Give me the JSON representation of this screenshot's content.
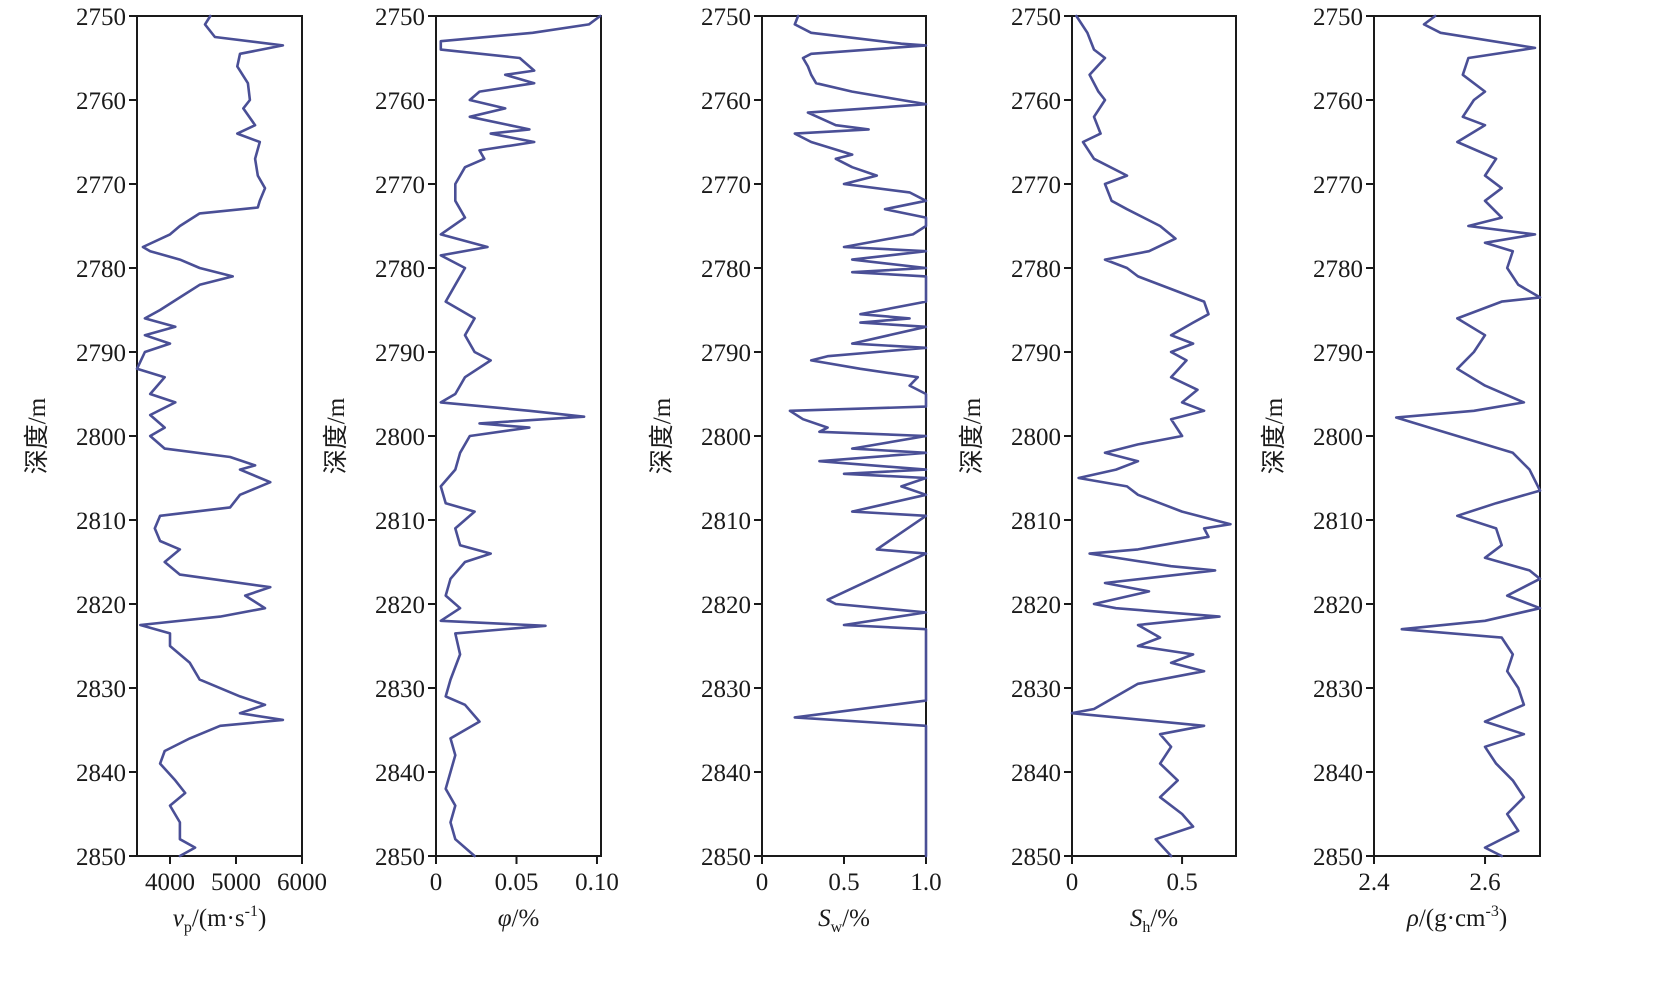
{
  "chart_data": {
    "type": "line",
    "layout": "five vertical well-log tracks sharing depth axis",
    "line_color": "#4a4f96",
    "depth_axis": {
      "label": "深度/m",
      "ylim": [
        2750,
        2850
      ],
      "ticks": [
        2750,
        2760,
        2770,
        2780,
        2790,
        2800,
        2810,
        2820,
        2830,
        2840,
        2850
      ],
      "inverted": true
    },
    "panels": [
      {
        "name": "vp",
        "xlabel": [
          {
            "t": "v",
            "k": "i"
          },
          {
            "t": "p",
            "k": "sub"
          },
          {
            "t": "/(m·s",
            "k": "n"
          },
          {
            "t": "-1",
            "k": "sup"
          },
          {
            "t": ")",
            "k": "n"
          }
        ],
        "xlim": [
          3500,
          6000
        ],
        "xticks": [
          4000,
          5000,
          6000
        ],
        "xtick_labels": [
          "4000",
          "5000",
          "6000"
        ],
        "depth": [
          2750,
          2751,
          2752.5,
          2753.5,
          2754.5,
          2756,
          2758,
          2760,
          2761,
          2763,
          2764,
          2765,
          2767,
          2769,
          2770.5,
          2772,
          2772.8,
          2773.5,
          2775,
          2776,
          2777.5,
          2778,
          2779,
          2780,
          2781,
          2782,
          2783.5,
          2785,
          2786,
          2787,
          2788,
          2789,
          2790,
          2792,
          2793,
          2795,
          2796,
          2797.5,
          2799,
          2800,
          2801.5,
          2802.5,
          2803.5,
          2804,
          2805.5,
          2807,
          2808.5,
          2809.5,
          2811,
          2812.5,
          2813.5,
          2815,
          2816.5,
          2818,
          2819,
          2820.5,
          2821.5,
          2822.5,
          2823.5,
          2825,
          2827,
          2829,
          2831,
          2832,
          2833,
          2833.8,
          2834.5,
          2836,
          2837.5,
          2839,
          2841,
          2842.5,
          2844,
          2846,
          2848,
          2849,
          2850
        ],
        "values": [
          4610,
          4530,
          4680,
          5710,
          5060,
          5020,
          5180,
          5210,
          5110,
          5290,
          5020,
          5360,
          5290,
          5330,
          5440,
          5360,
          5330,
          4450,
          4150,
          4000,
          3590,
          3700,
          4150,
          4450,
          4950,
          4450,
          4150,
          3850,
          3620,
          4080,
          3620,
          4000,
          3620,
          3500,
          3920,
          3700,
          4080,
          3700,
          3920,
          3700,
          3920,
          4910,
          5290,
          5060,
          5520,
          5060,
          4910,
          3850,
          3770,
          3850,
          4150,
          3920,
          4150,
          5520,
          5140,
          5440,
          4760,
          3550,
          4000,
          4000,
          4300,
          4450,
          5060,
          5440,
          5060,
          5710,
          4760,
          4300,
          3920,
          3850,
          4080,
          4230,
          4000,
          4150,
          4150,
          4380,
          4150
        ]
      },
      {
        "name": "porosity",
        "xlabel": [
          {
            "t": "φ",
            "k": "i"
          },
          {
            "t": "/%",
            "k": "n"
          }
        ],
        "xlim": [
          0,
          0.1025
        ],
        "xticks": [
          0,
          0.05,
          0.1
        ],
        "xtick_labels": [
          "0",
          "0.05",
          "0.10"
        ],
        "depth": [
          2750,
          2751,
          2752,
          2753,
          2754,
          2755,
          2756.5,
          2757,
          2758,
          2759,
          2760,
          2761,
          2762,
          2763.5,
          2764,
          2765,
          2766,
          2767,
          2768,
          2770,
          2772,
          2774,
          2776,
          2777.5,
          2778.5,
          2780,
          2782,
          2784,
          2786,
          2788,
          2790,
          2791,
          2793,
          2795,
          2796,
          2797,
          2797.7,
          2798.5,
          2799,
          2800,
          2802,
          2804,
          2806,
          2808,
          2809,
          2811,
          2813,
          2814,
          2815,
          2817,
          2819,
          2820.5,
          2822,
          2822.6,
          2823.5,
          2826,
          2829,
          2831,
          2832,
          2834,
          2836,
          2838,
          2840,
          2842,
          2844,
          2846,
          2848,
          2850
        ],
        "values": [
          0.102,
          0.095,
          0.06,
          0.003,
          0.003,
          0.052,
          0.061,
          0.043,
          0.061,
          0.027,
          0.021,
          0.043,
          0.021,
          0.058,
          0.034,
          0.061,
          0.027,
          0.03,
          0.018,
          0.012,
          0.012,
          0.018,
          0.003,
          0.032,
          0.003,
          0.018,
          0.012,
          0.006,
          0.024,
          0.018,
          0.024,
          0.034,
          0.018,
          0.012,
          0.003,
          0.058,
          0.092,
          0.027,
          0.058,
          0.021,
          0.015,
          0.012,
          0.003,
          0.006,
          0.024,
          0.012,
          0.015,
          0.034,
          0.018,
          0.009,
          0.006,
          0.015,
          0.003,
          0.068,
          0.012,
          0.015,
          0.009,
          0.006,
          0.018,
          0.027,
          0.009,
          0.012,
          0.009,
          0.006,
          0.012,
          0.009,
          0.012,
          0.024
        ]
      },
      {
        "name": "Sw",
        "xlabel": [
          {
            "t": "S",
            "k": "i"
          },
          {
            "t": "w",
            "k": "sub"
          },
          {
            "t": "/%",
            "k": "n"
          }
        ],
        "xlim": [
          0,
          1.0
        ],
        "xticks": [
          0,
          0.5,
          1.0
        ],
        "xtick_labels": [
          "0",
          "0.5",
          "1.0"
        ],
        "depth": [
          2750,
          2751,
          2752,
          2753.3,
          2753.5,
          2754.5,
          2755,
          2756,
          2757,
          2758,
          2759,
          2760,
          2760.5,
          2761.5,
          2763,
          2763.5,
          2764,
          2765,
          2766.5,
          2767,
          2768,
          2769,
          2770,
          2771,
          2772,
          2773,
          2774,
          2775,
          2776,
          2777.5,
          2778,
          2779,
          2780,
          2780.5,
          2781,
          2784,
          2785.5,
          2786,
          2786.5,
          2787,
          2789,
          2789.5,
          2790.5,
          2791,
          2792,
          2793,
          2794,
          2795,
          2796.5,
          2797,
          2798,
          2799,
          2799.5,
          2800,
          2801.5,
          2802,
          2803,
          2804,
          2804.5,
          2805,
          2806,
          2807,
          2809,
          2809.5,
          2813.5,
          2814,
          2819.5,
          2820,
          2821,
          2822.5,
          2823,
          2831.5,
          2833.5,
          2834.5,
          2850
        ],
        "values": [
          0.22,
          0.2,
          0.3,
          0.85,
          1.0,
          0.3,
          0.25,
          0.28,
          0.3,
          0.33,
          0.55,
          0.85,
          1.0,
          0.28,
          0.45,
          0.65,
          0.2,
          0.3,
          0.55,
          0.45,
          0.55,
          0.7,
          0.5,
          0.9,
          1.0,
          0.75,
          1.0,
          1.0,
          0.92,
          0.5,
          1.0,
          0.55,
          1.0,
          0.55,
          1.0,
          1.0,
          0.6,
          0.9,
          0.6,
          1.0,
          0.55,
          1.0,
          0.4,
          0.3,
          0.6,
          0.95,
          0.9,
          1.0,
          1.0,
          0.17,
          0.25,
          0.4,
          0.35,
          1.0,
          0.55,
          1.0,
          0.35,
          1.0,
          0.5,
          1.0,
          0.85,
          1.0,
          0.55,
          1.0,
          0.7,
          1.0,
          0.4,
          0.45,
          1.0,
          0.5,
          1.0,
          1.0,
          0.2,
          1.0,
          1.0
        ]
      },
      {
        "name": "Sh",
        "xlabel": [
          {
            "t": "S",
            "k": "i"
          },
          {
            "t": "h",
            "k": "sub"
          },
          {
            "t": "/%",
            "k": "n"
          }
        ],
        "xlim": [
          0,
          0.745
        ],
        "xticks": [
          0,
          0.5
        ],
        "xtick_labels": [
          "0",
          "0.5"
        ],
        "depth": [
          2750,
          2752,
          2754,
          2755,
          2757,
          2759,
          2760,
          2762,
          2764,
          2765,
          2767,
          2769,
          2770,
          2772,
          2773,
          2775,
          2776.5,
          2778,
          2779,
          2780,
          2781,
          2782.5,
          2784,
          2785.5,
          2786.5,
          2788,
          2789,
          2790,
          2791,
          2793,
          2794.5,
          2796,
          2797,
          2798,
          2800,
          2801,
          2802,
          2803,
          2804,
          2805,
          2806,
          2807,
          2808,
          2809,
          2810.5,
          2811,
          2812,
          2813.5,
          2814,
          2815.5,
          2816,
          2817.5,
          2818.5,
          2820,
          2820.5,
          2821.5,
          2822.5,
          2824,
          2825,
          2826,
          2827,
          2828,
          2829.5,
          2831,
          2832.5,
          2833,
          2834.5,
          2835.5,
          2837,
          2839,
          2841,
          2843,
          2845,
          2846.5,
          2848,
          2850
        ],
        "values": [
          0.02,
          0.07,
          0.1,
          0.15,
          0.08,
          0.12,
          0.15,
          0.1,
          0.13,
          0.05,
          0.1,
          0.25,
          0.15,
          0.18,
          0.25,
          0.4,
          0.47,
          0.35,
          0.15,
          0.25,
          0.3,
          0.45,
          0.6,
          0.62,
          0.55,
          0.45,
          0.55,
          0.45,
          0.52,
          0.45,
          0.57,
          0.5,
          0.6,
          0.45,
          0.5,
          0.3,
          0.15,
          0.3,
          0.2,
          0.03,
          0.25,
          0.3,
          0.4,
          0.5,
          0.72,
          0.6,
          0.62,
          0.3,
          0.08,
          0.45,
          0.65,
          0.15,
          0.35,
          0.1,
          0.2,
          0.67,
          0.3,
          0.4,
          0.3,
          0.55,
          0.45,
          0.6,
          0.3,
          0.2,
          0.1,
          0.0,
          0.6,
          0.4,
          0.45,
          0.4,
          0.48,
          0.4,
          0.5,
          0.55,
          0.38,
          0.45
        ]
      },
      {
        "name": "density",
        "xlabel": [
          {
            "t": "ρ",
            "k": "i"
          },
          {
            "t": "/(g·cm",
            "k": "n"
          },
          {
            "t": "-3",
            "k": "sup"
          },
          {
            "t": ")",
            "k": "n"
          }
        ],
        "xlim": [
          2.4,
          2.699
        ],
        "xticks": [
          2.4,
          2.6
        ],
        "xtick_labels": [
          "2.4",
          "2.6"
        ],
        "depth": [
          2750,
          2751,
          2752,
          2753.8,
          2755,
          2757,
          2759,
          2760,
          2762,
          2763,
          2765,
          2767,
          2769,
          2770.5,
          2772,
          2774,
          2775,
          2776,
          2777,
          2778,
          2780,
          2782,
          2783.5,
          2784,
          2786,
          2788,
          2790,
          2792,
          2794,
          2796,
          2797,
          2797.8,
          2799,
          2800,
          2802,
          2804,
          2806.5,
          2808,
          2809.5,
          2811,
          2813,
          2814.5,
          2816,
          2817,
          2819,
          2820.5,
          2822,
          2823,
          2824,
          2826,
          2828,
          2830,
          2832,
          2834,
          2835.5,
          2837,
          2839,
          2841,
          2843,
          2845,
          2847,
          2849,
          2850
        ],
        "values": [
          2.51,
          2.49,
          2.52,
          2.69,
          2.57,
          2.56,
          2.6,
          2.58,
          2.56,
          2.6,
          2.55,
          2.62,
          2.6,
          2.63,
          2.6,
          2.63,
          2.57,
          2.69,
          2.6,
          2.65,
          2.64,
          2.66,
          2.7,
          2.63,
          2.55,
          2.6,
          2.58,
          2.55,
          2.6,
          2.67,
          2.58,
          2.44,
          2.5,
          2.55,
          2.65,
          2.68,
          2.72,
          2.62,
          2.55,
          2.62,
          2.63,
          2.6,
          2.68,
          2.7,
          2.64,
          2.7,
          2.6,
          2.45,
          2.63,
          2.65,
          2.64,
          2.66,
          2.67,
          2.6,
          2.67,
          2.6,
          2.62,
          2.65,
          2.67,
          2.64,
          2.66,
          2.6,
          2.63
        ]
      }
    ]
  }
}
